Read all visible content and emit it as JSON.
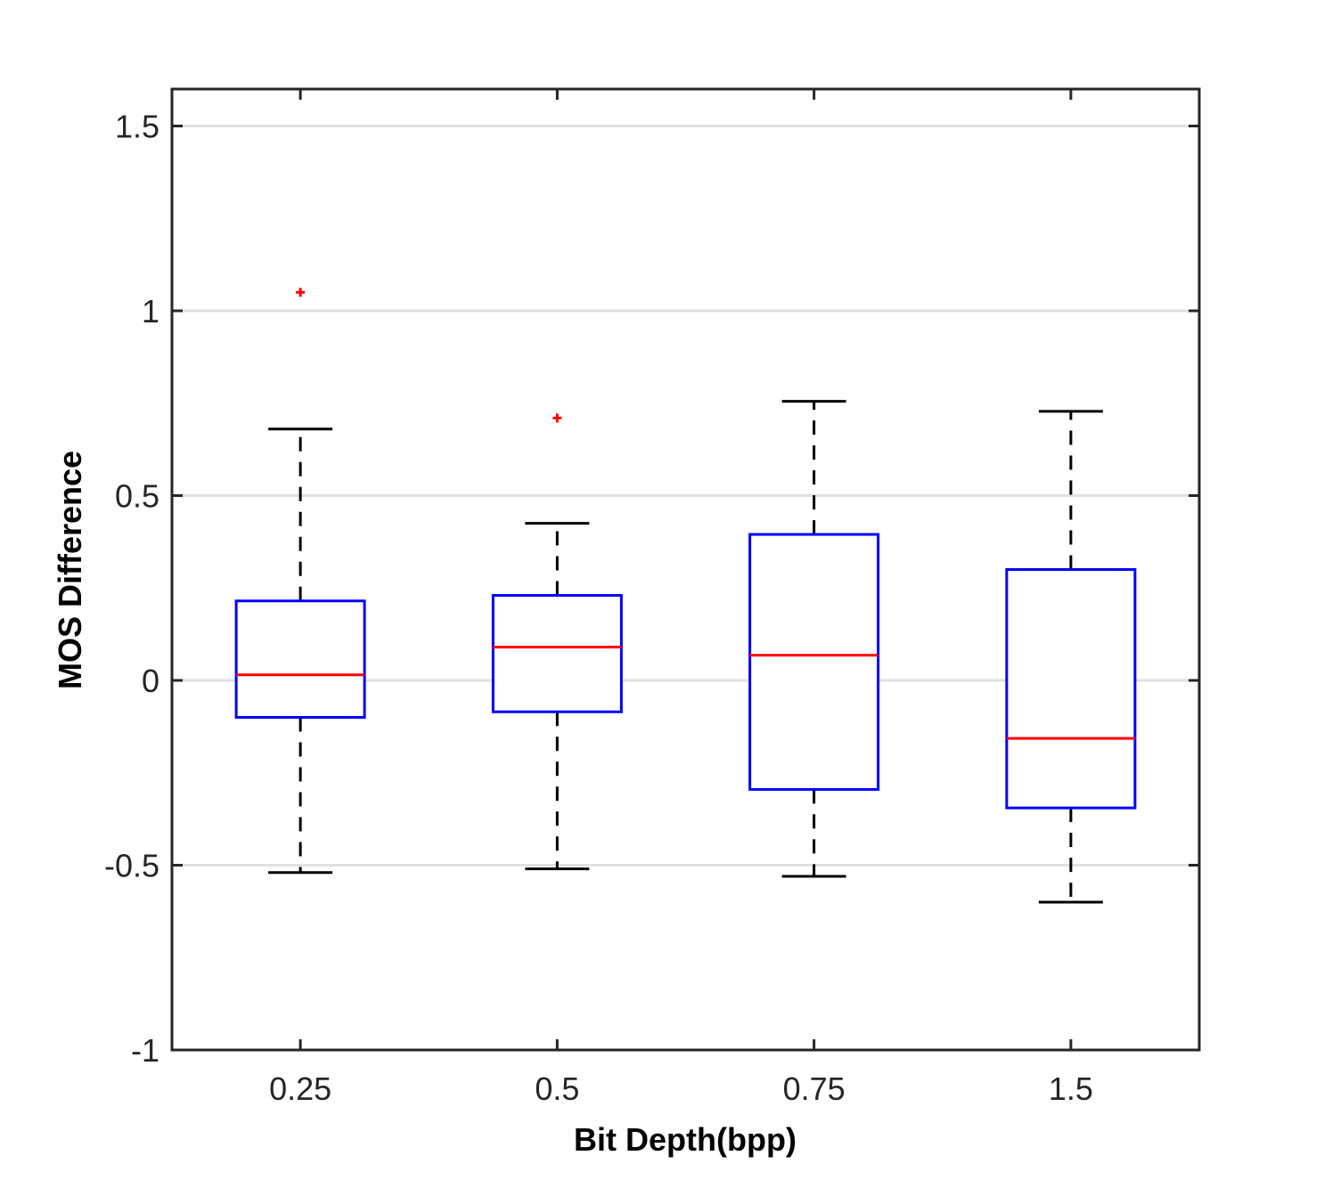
{
  "chart_data": {
    "type": "boxplot",
    "xlabel": "Bit Depth(bpp)",
    "ylabel": "MOS Difference",
    "ylim": [
      -1,
      1.6
    ],
    "yticks": [
      -1,
      -0.5,
      0,
      0.5,
      1,
      1.5
    ],
    "ytick_labels": [
      "-1",
      "-0.5",
      "0",
      "0.5",
      "1",
      "1.5"
    ],
    "grid_y": true,
    "categories": [
      "0.25",
      "0.5",
      "0.75",
      "1.5"
    ],
    "boxes": [
      {
        "label": "0.25",
        "whisker_low": -0.52,
        "q1": -0.1,
        "median": 0.015,
        "q3": 0.215,
        "whisker_high": 0.68,
        "outliers": [
          1.05
        ]
      },
      {
        "label": "0.5",
        "whisker_low": -0.51,
        "q1": -0.085,
        "median": 0.09,
        "q3": 0.23,
        "whisker_high": 0.425,
        "outliers": [
          0.71
        ]
      },
      {
        "label": "0.75",
        "whisker_low": -0.53,
        "q1": -0.295,
        "median": 0.068,
        "q3": 0.395,
        "whisker_high": 0.755,
        "outliers": []
      },
      {
        "label": "1.5",
        "whisker_low": -0.6,
        "q1": -0.345,
        "median": -0.157,
        "q3": 0.3,
        "whisker_high": 0.728,
        "outliers": []
      }
    ],
    "colors": {
      "box": "#0000ff",
      "median": "#ff0000",
      "whisker": "#000000",
      "outlier": "#ff0000",
      "grid": "#e0e0e0",
      "axis": "#262626"
    }
  }
}
